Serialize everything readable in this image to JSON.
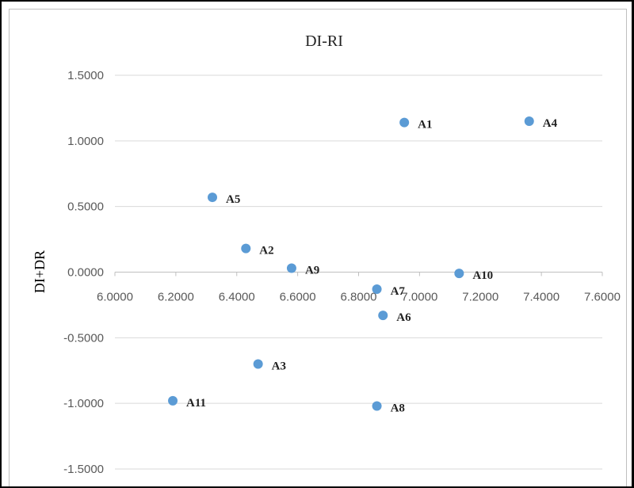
{
  "chart_data": {
    "type": "scatter",
    "title": "DI-RI",
    "xlabel": "",
    "ylabel": "DI+DR",
    "xlim": [
      6.0,
      7.6
    ],
    "ylim": [
      -1.5,
      1.5
    ],
    "x_ticks": [
      "6.0000",
      "6.2000",
      "6.4000",
      "6.6000",
      "6.8000",
      "7.0000",
      "7.2000",
      "7.4000",
      "7.6000"
    ],
    "y_ticks": [
      "1.5000",
      "1.0000",
      "0.5000",
      "0.0000",
      "-0.5000",
      "-1.0000",
      "-1.5000"
    ],
    "grid": "horizontal",
    "marker_color": "#5b9bd5",
    "points": [
      {
        "label": "A1",
        "x": 6.95,
        "y": 1.14
      },
      {
        "label": "A2",
        "x": 6.43,
        "y": 0.18
      },
      {
        "label": "A3",
        "x": 6.47,
        "y": -0.7
      },
      {
        "label": "A4",
        "x": 7.36,
        "y": 1.15
      },
      {
        "label": "A5",
        "x": 6.32,
        "y": 0.57
      },
      {
        "label": "A6",
        "x": 6.88,
        "y": -0.33
      },
      {
        "label": "A7",
        "x": 6.86,
        "y": -0.13
      },
      {
        "label": "A8",
        "x": 6.86,
        "y": -1.02
      },
      {
        "label": "A9",
        "x": 6.58,
        "y": 0.03
      },
      {
        "label": "A10",
        "x": 7.13,
        "y": -0.01
      },
      {
        "label": "A11",
        "x": 6.19,
        "y": -0.98
      }
    ]
  }
}
